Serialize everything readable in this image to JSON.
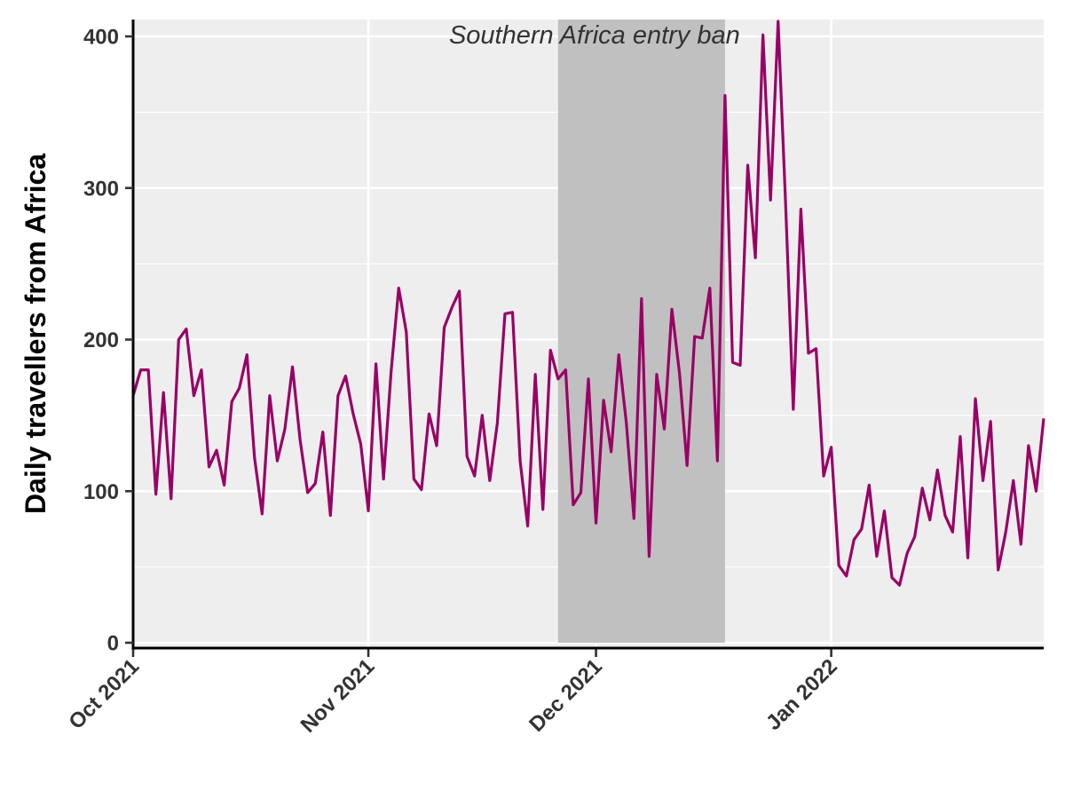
{
  "chart_data": {
    "type": "line",
    "title": "",
    "xlabel": "",
    "ylabel": "Daily travellers from Africa",
    "xlim": [
      "2021-10-01",
      "2022-01-29"
    ],
    "ylim": [
      0,
      410
    ],
    "y_ticks": [
      0,
      100,
      200,
      300,
      400
    ],
    "x_ticks": [
      {
        "date": "2021-10-01",
        "label": "Oct 2021"
      },
      {
        "date": "2021-11-01",
        "label": "Nov 2021"
      },
      {
        "date": "2021-12-01",
        "label": "Dec 2021"
      },
      {
        "date": "2022-01-01",
        "label": "Jan 2022"
      }
    ],
    "grid": true,
    "legend": "none",
    "shaded_region": {
      "start": "2021-11-26",
      "end": "2021-12-18",
      "label": "Southern Africa entry ban",
      "color": "#c0c0c0"
    },
    "series": [
      {
        "color": "#990066",
        "x": [
          "2021-10-01",
          "2021-10-02",
          "2021-10-03",
          "2021-10-04",
          "2021-10-05",
          "2021-10-06",
          "2021-10-07",
          "2021-10-08",
          "2021-10-09",
          "2021-10-10",
          "2021-10-11",
          "2021-10-12",
          "2021-10-13",
          "2021-10-14",
          "2021-10-15",
          "2021-10-16",
          "2021-10-17",
          "2021-10-18",
          "2021-10-19",
          "2021-10-20",
          "2021-10-21",
          "2021-10-22",
          "2021-10-23",
          "2021-10-24",
          "2021-10-25",
          "2021-10-26",
          "2021-10-27",
          "2021-10-28",
          "2021-10-29",
          "2021-10-30",
          "2021-10-31",
          "2021-11-01",
          "2021-11-02",
          "2021-11-03",
          "2021-11-04",
          "2021-11-05",
          "2021-11-06",
          "2021-11-07",
          "2021-11-08",
          "2021-11-09",
          "2021-11-10",
          "2021-11-11",
          "2021-11-12",
          "2021-11-13",
          "2021-11-14",
          "2021-11-15",
          "2021-11-16",
          "2021-11-17",
          "2021-11-18",
          "2021-11-19",
          "2021-11-20",
          "2021-11-21",
          "2021-11-22",
          "2021-11-23",
          "2021-11-24",
          "2021-11-25",
          "2021-11-26",
          "2021-11-27",
          "2021-11-28",
          "2021-11-29",
          "2021-11-30",
          "2021-12-01",
          "2021-12-02",
          "2021-12-03",
          "2021-12-04",
          "2021-12-05",
          "2021-12-06",
          "2021-12-07",
          "2021-12-08",
          "2021-12-09",
          "2021-12-10",
          "2021-12-11",
          "2021-12-12",
          "2021-12-13",
          "2021-12-14",
          "2021-12-15",
          "2021-12-16",
          "2021-12-17",
          "2021-12-18",
          "2021-12-19",
          "2021-12-20",
          "2021-12-21",
          "2021-12-22",
          "2021-12-23",
          "2021-12-24",
          "2021-12-25",
          "2021-12-26",
          "2021-12-27",
          "2021-12-28",
          "2021-12-29",
          "2021-12-30",
          "2021-12-31",
          "2022-01-01",
          "2022-01-02",
          "2022-01-03",
          "2022-01-04",
          "2022-01-05",
          "2022-01-06",
          "2022-01-07",
          "2022-01-08",
          "2022-01-09",
          "2022-01-10",
          "2022-01-11",
          "2022-01-12",
          "2022-01-13",
          "2022-01-14",
          "2022-01-15",
          "2022-01-16",
          "2022-01-17",
          "2022-01-18",
          "2022-01-19",
          "2022-01-20",
          "2022-01-21",
          "2022-01-22",
          "2022-01-23",
          "2022-01-24",
          "2022-01-25",
          "2022-01-26",
          "2022-01-27",
          "2022-01-28",
          "2022-01-29"
        ],
        "values": [
          163,
          180,
          180,
          98,
          165,
          95,
          200,
          207,
          163,
          180,
          116,
          127,
          104,
          159,
          168,
          190,
          122,
          85,
          163,
          120,
          141,
          182,
          134,
          99,
          105,
          139,
          84,
          163,
          176,
          151,
          131,
          87,
          184,
          108,
          179,
          234,
          205,
          108,
          101,
          151,
          130,
          208,
          221,
          232,
          123,
          110,
          150,
          107,
          145,
          217,
          218,
          120,
          77,
          177,
          88,
          193,
          174,
          180,
          91,
          99,
          174,
          79,
          160,
          126,
          190,
          145,
          82,
          227,
          57,
          177,
          141,
          220,
          178,
          117,
          202,
          201,
          234,
          120,
          361,
          185,
          183,
          315,
          254,
          401,
          292,
          410,
          288,
          154,
          286,
          191,
          194,
          110,
          129,
          51,
          44,
          68,
          75,
          104,
          57,
          87,
          43,
          38,
          59,
          70,
          102,
          81,
          114,
          84,
          73,
          136,
          56,
          161,
          107,
          146,
          48,
          73,
          107,
          65,
          130,
          100,
          148
        ]
      }
    ]
  }
}
